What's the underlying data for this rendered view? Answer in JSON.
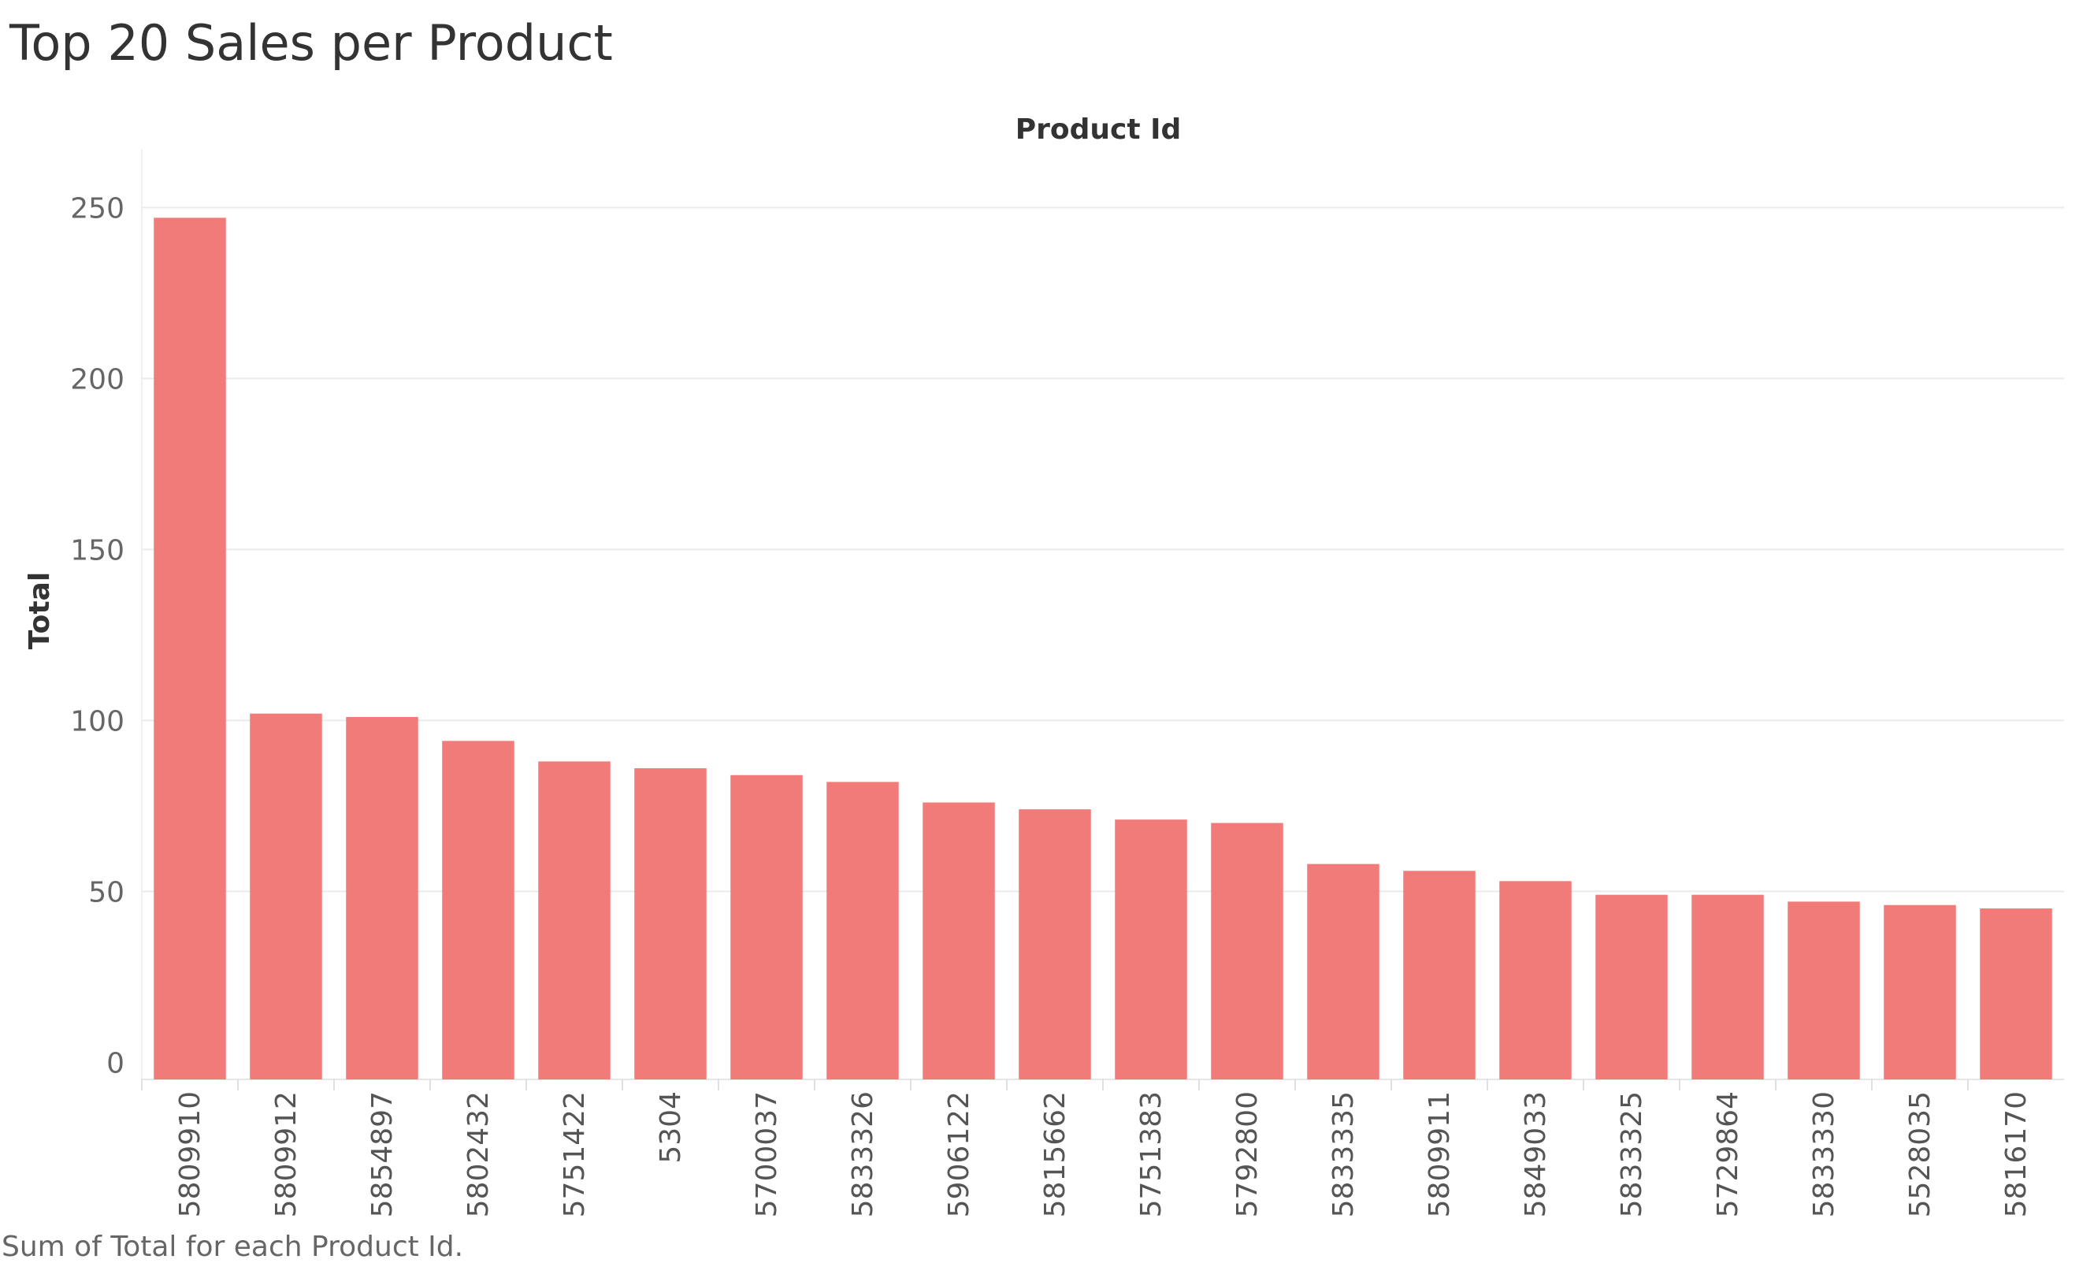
{
  "chart_data": {
    "type": "bar",
    "title": "Top 20 Sales per Product",
    "column_header": "Product Id",
    "ylabel": "Total",
    "caption": "Sum of Total for each Product Id.",
    "categories": [
      "5809910",
      "5809912",
      "5854897",
      "5802432",
      "5751422",
      "5304",
      "5700037",
      "5833326",
      "5906122",
      "5815662",
      "5751383",
      "5792800",
      "5833335",
      "5809911",
      "5849033",
      "5833325",
      "5729864",
      "5833330",
      "5528035",
      "5816170"
    ],
    "values": [
      247,
      102,
      101,
      94,
      88,
      86,
      84,
      82,
      76,
      74,
      71,
      70,
      58,
      56,
      53,
      49,
      49,
      47,
      46,
      45
    ],
    "y_ticks": [
      0,
      50,
      100,
      150,
      200,
      250
    ],
    "ylim": [
      -5,
      260
    ],
    "grid": true,
    "bar_color": "#f07b78",
    "grid_color": "#ebebeb"
  }
}
